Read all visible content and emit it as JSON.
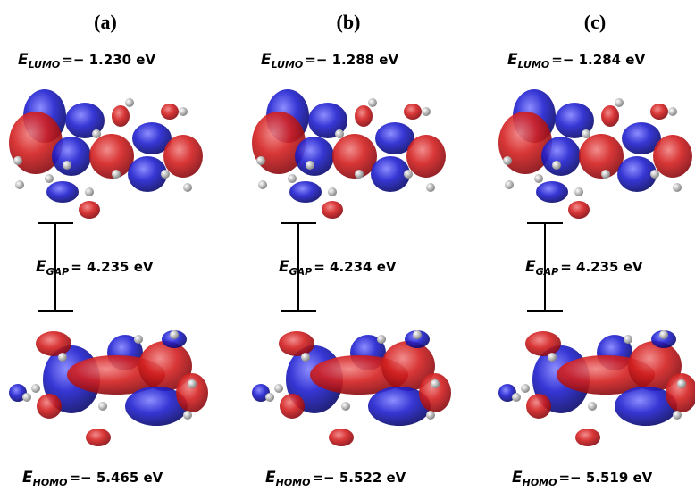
{
  "panels": [
    {
      "label": "(a)",
      "lumo": {
        "symbol": "E",
        "subscript": "LUMO",
        "value": "=− 1.230 eV"
      },
      "gap": {
        "symbol": "E",
        "subscript": "GAP",
        "value": "= 4.235 eV"
      },
      "homo": {
        "symbol": "E",
        "subscript": "HOMO",
        "value": "=− 5.465 eV"
      }
    },
    {
      "label": "(b)",
      "lumo": {
        "symbol": "E",
        "subscript": "LUMO",
        "value": "=− 1.288 eV"
      },
      "gap": {
        "symbol": "E",
        "subscript": "GAP",
        "value": "= 4.234 eV"
      },
      "homo": {
        "symbol": "E",
        "subscript": "HOMO",
        "value": "=− 5.522 eV"
      }
    },
    {
      "label": "(c)",
      "lumo": {
        "symbol": "E",
        "subscript": "LUMO",
        "value": "=− 1.284 eV"
      },
      "gap": {
        "symbol": "E",
        "subscript": "GAP",
        "value": "= 4.235 eV"
      },
      "homo": {
        "symbol": "E",
        "subscript": "HOMO",
        "value": "=− 5.519 eV"
      }
    }
  ]
}
